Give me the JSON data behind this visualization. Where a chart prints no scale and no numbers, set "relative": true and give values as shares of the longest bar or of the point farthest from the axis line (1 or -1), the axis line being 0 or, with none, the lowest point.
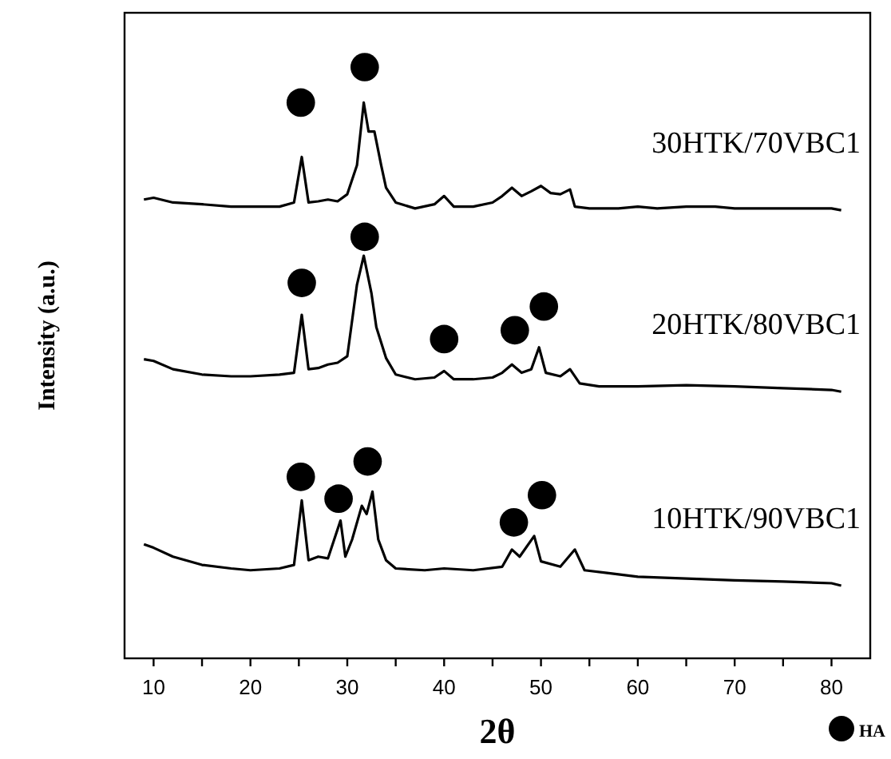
{
  "chart_data": {
    "type": "line",
    "relative": true,
    "xlabel": "2θ",
    "ylabel": "Intensity (a.u.)",
    "xlim": [
      7,
      84
    ],
    "xticks": [
      10,
      {
        "value": 15,
        "label": null
      },
      20,
      {
        "value": 25,
        "label": null
      },
      30,
      {
        "value": 35,
        "label": null
      },
      40,
      {
        "value": 45,
        "label": null
      },
      50,
      {
        "value": 55,
        "label": null
      },
      60,
      {
        "value": 65,
        "label": null
      },
      70,
      {
        "value": 75,
        "label": null
      },
      80
    ],
    "tick_labels": "x",
    "legend": "bottom right",
    "series": [
      {
        "name": "30HTK/70VBC1",
        "color": "#000000",
        "x": [
          9,
          10,
          12,
          15,
          18,
          20,
          23,
          24.5,
          25.3,
          26,
          27,
          28,
          29,
          30,
          31,
          31.7,
          32.2,
          32.8,
          33.5,
          34,
          35,
          37,
          39,
          40,
          41,
          43,
          45,
          46,
          47,
          48,
          49,
          50,
          51,
          52,
          53,
          53.5,
          55,
          58,
          60,
          62,
          65,
          68,
          70,
          73,
          76,
          80,
          81
        ],
        "values": [
          0.776,
          0.779,
          0.771,
          0.768,
          0.764,
          0.764,
          0.764,
          0.771,
          0.848,
          0.771,
          0.773,
          0.776,
          0.773,
          0.785,
          0.834,
          0.94,
          0.891,
          0.891,
          0.834,
          0.796,
          0.771,
          0.761,
          0.768,
          0.782,
          0.764,
          0.764,
          0.771,
          0.782,
          0.796,
          0.782,
          0.79,
          0.799,
          0.787,
          0.785,
          0.793,
          0.764,
          0.761,
          0.761,
          0.764,
          0.761,
          0.764,
          0.764,
          0.761,
          0.761,
          0.761,
          0.761,
          0.758
        ]
      },
      {
        "name": "20HTK/80VBC1",
        "color": "#000000",
        "x": [
          9,
          10,
          12,
          15,
          18,
          20,
          23,
          24.5,
          25.3,
          26,
          27,
          28,
          29,
          30,
          31,
          31.7,
          32.5,
          33,
          34,
          35,
          37,
          39,
          40,
          41,
          43,
          45,
          46,
          47,
          48,
          49,
          49.8,
          50.5,
          52,
          53,
          54,
          56,
          60,
          65,
          70,
          75,
          80,
          81
        ],
        "values": [
          0.506,
          0.503,
          0.489,
          0.48,
          0.477,
          0.477,
          0.48,
          0.483,
          0.581,
          0.489,
          0.491,
          0.497,
          0.5,
          0.511,
          0.632,
          0.681,
          0.617,
          0.56,
          0.508,
          0.48,
          0.472,
          0.475,
          0.486,
          0.472,
          0.472,
          0.475,
          0.483,
          0.497,
          0.483,
          0.489,
          0.526,
          0.483,
          0.477,
          0.489,
          0.465,
          0.46,
          0.46,
          0.462,
          0.46,
          0.457,
          0.454,
          0.451
        ]
      },
      {
        "name": "10HTK/90VBC1",
        "color": "#000000",
        "x": [
          9,
          10,
          12,
          15,
          18,
          20,
          23,
          24.5,
          25.3,
          26,
          27,
          28,
          29.3,
          29.8,
          30.5,
          31.5,
          32,
          32.6,
          33.2,
          34,
          35,
          38,
          40,
          43,
          46,
          47,
          47.8,
          49.3,
          50,
          52,
          53.5,
          54.5,
          57,
          60,
          65,
          70,
          75,
          80,
          81
        ],
        "values": [
          0.193,
          0.187,
          0.172,
          0.158,
          0.152,
          0.149,
          0.152,
          0.158,
          0.267,
          0.166,
          0.172,
          0.169,
          0.233,
          0.172,
          0.201,
          0.258,
          0.244,
          0.282,
          0.201,
          0.166,
          0.152,
          0.149,
          0.152,
          0.149,
          0.155,
          0.184,
          0.172,
          0.207,
          0.164,
          0.155,
          0.184,
          0.149,
          0.144,
          0.138,
          0.135,
          0.132,
          0.13,
          0.127,
          0.123
        ]
      },
      {
        "name": "HA",
        "type": "scatter",
        "marker": "circle",
        "color": "#000000",
        "x": [
          25.2,
          31.8,
          25.3,
          31.8,
          40,
          47.3,
          50.3,
          25.2,
          29.1,
          32.1,
          47.2,
          50.1
        ],
        "values": [
          0.94,
          1.0,
          0.635,
          0.713,
          0.54,
          0.555,
          0.595,
          0.307,
          0.27,
          0.333,
          0.23,
          0.276
        ]
      }
    ]
  }
}
